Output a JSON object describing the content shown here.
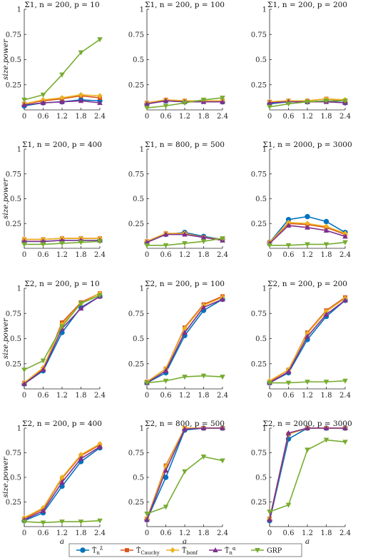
{
  "x_ticks": [
    "0",
    "0.6",
    "1.2",
    "1.8",
    "2.4"
  ],
  "y_ticks": [
    "0.25",
    "0.5",
    "0.75",
    "1"
  ],
  "ylabel": "size.power",
  "xlabel": "a",
  "legend": [
    {
      "main": "T̂",
      "sub": "n",
      "sup": "λ̂",
      "color": "#0072BD",
      "marker": "circle"
    },
    {
      "main": "T̂",
      "sub": "Cauchy",
      "sup": "",
      "color": "#D95319",
      "marker": "square"
    },
    {
      "main": "T̂",
      "sub": "bonf",
      "sup": "",
      "color": "#EDB120",
      "marker": "diamond"
    },
    {
      "main": "T̂",
      "sub": "n",
      "sup": "α",
      "color": "#7E2F8E",
      "marker": "triangle-up"
    },
    {
      "main": "GRP",
      "sub": "",
      "sup": "",
      "color": "#77AC30",
      "marker": "triangle-down"
    }
  ],
  "chart_data": [
    {
      "type": "line",
      "title": "Σ1, n = 200, p = 10",
      "x": [
        0,
        0.6,
        1.2,
        1.8,
        2.4
      ],
      "ylim": [
        0,
        1
      ],
      "series": [
        {
          "name": "T̂n^λ̂",
          "values": [
            0.04,
            0.07,
            0.08,
            0.1,
            0.09
          ]
        },
        {
          "name": "T̂Cauchy",
          "values": [
            0.06,
            0.09,
            0.11,
            0.14,
            0.12
          ]
        },
        {
          "name": "T̂bonf",
          "values": [
            0.06,
            0.1,
            0.12,
            0.15,
            0.14
          ]
        },
        {
          "name": "T̂n^α",
          "values": [
            0.05,
            0.07,
            0.08,
            0.09,
            0.07
          ]
        },
        {
          "name": "GRP",
          "values": [
            0.1,
            0.15,
            0.35,
            0.57,
            0.7
          ]
        }
      ]
    },
    {
      "type": "line",
      "title": "Σ1, n = 200, p = 100",
      "x": [
        0,
        0.6,
        1.2,
        1.8,
        2.4
      ],
      "ylim": [
        0,
        1
      ],
      "series": [
        {
          "name": "T̂n^λ̂",
          "values": [
            0.06,
            0.09,
            0.08,
            0.09,
            0.08
          ]
        },
        {
          "name": "T̂Cauchy",
          "values": [
            0.07,
            0.1,
            0.09,
            0.09,
            0.09
          ]
        },
        {
          "name": "T̂bonf",
          "values": [
            0.07,
            0.1,
            0.09,
            0.09,
            0.09
          ]
        },
        {
          "name": "T̂n^α",
          "values": [
            0.06,
            0.09,
            0.08,
            0.08,
            0.08
          ]
        },
        {
          "name": "GRP",
          "values": [
            0.02,
            0.04,
            0.07,
            0.1,
            0.12
          ]
        }
      ]
    },
    {
      "type": "line",
      "title": "Σ1, n = 200, p = 200",
      "x": [
        0,
        0.6,
        1.2,
        1.8,
        2.4
      ],
      "ylim": [
        0,
        1
      ],
      "series": [
        {
          "name": "T̂n^λ̂",
          "values": [
            0.06,
            0.08,
            0.08,
            0.09,
            0.07
          ]
        },
        {
          "name": "T̂Cauchy",
          "values": [
            0.08,
            0.09,
            0.09,
            0.11,
            0.09
          ]
        },
        {
          "name": "T̂bonf",
          "values": [
            0.08,
            0.09,
            0.09,
            0.11,
            0.1
          ]
        },
        {
          "name": "T̂n^α",
          "values": [
            0.07,
            0.08,
            0.08,
            0.08,
            0.07
          ]
        },
        {
          "name": "GRP",
          "values": [
            0.03,
            0.06,
            0.08,
            0.09,
            0.09
          ]
        }
      ]
    },
    {
      "type": "line",
      "title": "Σ1, n = 200, p = 400",
      "x": [
        0,
        0.6,
        1.2,
        1.8,
        2.4
      ],
      "ylim": [
        0,
        1
      ],
      "series": [
        {
          "name": "T̂n^λ̂",
          "values": [
            0.07,
            0.07,
            0.08,
            0.08,
            0.08
          ]
        },
        {
          "name": "T̂Cauchy",
          "values": [
            0.09,
            0.09,
            0.1,
            0.1,
            0.1
          ]
        },
        {
          "name": "T̂bonf",
          "values": [
            0.09,
            0.09,
            0.1,
            0.1,
            0.1
          ]
        },
        {
          "name": "T̂n^α",
          "values": [
            0.07,
            0.07,
            0.08,
            0.08,
            0.08
          ]
        },
        {
          "name": "GRP",
          "values": [
            0.04,
            0.04,
            0.05,
            0.06,
            0.07
          ]
        }
      ]
    },
    {
      "type": "line",
      "title": "Σ1, n = 800, p = 500",
      "x": [
        0,
        0.6,
        1.2,
        1.8,
        2.4
      ],
      "ylim": [
        0,
        1
      ],
      "series": [
        {
          "name": "T̂n^λ̂",
          "values": [
            0.06,
            0.14,
            0.16,
            0.12,
            0.09
          ]
        },
        {
          "name": "T̂Cauchy",
          "values": [
            0.07,
            0.15,
            0.15,
            0.11,
            0.09
          ]
        },
        {
          "name": "T̂bonf",
          "values": [
            0.07,
            0.15,
            0.15,
            0.11,
            0.09
          ]
        },
        {
          "name": "T̂n^α",
          "values": [
            0.06,
            0.14,
            0.14,
            0.11,
            0.08
          ]
        },
        {
          "name": "GRP",
          "values": [
            0.03,
            0.03,
            0.05,
            0.07,
            0.1
          ]
        }
      ]
    },
    {
      "type": "line",
      "title": "Σ1, n = 2000, p = 3000",
      "x": [
        0,
        0.6,
        1.2,
        1.8,
        2.4
      ],
      "ylim": [
        0,
        1
      ],
      "series": [
        {
          "name": "T̂n^λ̂",
          "values": [
            0.06,
            0.29,
            0.32,
            0.27,
            0.16
          ]
        },
        {
          "name": "T̂Cauchy",
          "values": [
            0.06,
            0.25,
            0.24,
            0.21,
            0.14
          ]
        },
        {
          "name": "T̂bonf",
          "values": [
            0.06,
            0.26,
            0.25,
            0.22,
            0.15
          ]
        },
        {
          "name": "T̂n^α",
          "values": [
            0.05,
            0.23,
            0.21,
            0.18,
            0.12
          ]
        },
        {
          "name": "GRP",
          "values": [
            0.03,
            0.03,
            0.04,
            0.04,
            0.06
          ]
        }
      ]
    },
    {
      "type": "line",
      "title": "Σ2, n = 200, p = 10",
      "x": [
        0,
        0.6,
        1.2,
        1.8,
        2.4
      ],
      "ylim": [
        0,
        1
      ],
      "series": [
        {
          "name": "T̂n^λ̂",
          "values": [
            0.05,
            0.18,
            0.56,
            0.81,
            0.92
          ]
        },
        {
          "name": "T̂Cauchy",
          "values": [
            0.06,
            0.2,
            0.66,
            0.86,
            0.95
          ]
        },
        {
          "name": "T̂bonf",
          "values": [
            0.06,
            0.21,
            0.64,
            0.85,
            0.95
          ]
        },
        {
          "name": "T̂n^α",
          "values": [
            0.05,
            0.19,
            0.6,
            0.8,
            0.92
          ]
        },
        {
          "name": "GRP",
          "values": [
            0.19,
            0.28,
            0.62,
            0.85,
            0.93
          ]
        }
      ]
    },
    {
      "type": "line",
      "title": "Σ2, n = 200, p = 100",
      "x": [
        0,
        0.6,
        1.2,
        1.8,
        2.4
      ],
      "ylim": [
        0,
        1
      ],
      "series": [
        {
          "name": "T̂n^λ̂",
          "values": [
            0.06,
            0.16,
            0.53,
            0.78,
            0.89
          ]
        },
        {
          "name": "T̂Cauchy",
          "values": [
            0.07,
            0.2,
            0.61,
            0.84,
            0.92
          ]
        },
        {
          "name": "T̂bonf",
          "values": [
            0.07,
            0.2,
            0.6,
            0.83,
            0.91
          ]
        },
        {
          "name": "T̂n^α",
          "values": [
            0.06,
            0.18,
            0.56,
            0.81,
            0.89
          ]
        },
        {
          "name": "GRP",
          "values": [
            0.06,
            0.08,
            0.12,
            0.13,
            0.12
          ]
        }
      ]
    },
    {
      "type": "line",
      "title": "Σ2, n = 200, p = 200",
      "x": [
        0,
        0.6,
        1.2,
        1.8,
        2.4
      ],
      "ylim": [
        0,
        1
      ],
      "series": [
        {
          "name": "T̂n^λ̂",
          "values": [
            0.06,
            0.16,
            0.49,
            0.72,
            0.88
          ]
        },
        {
          "name": "T̂Cauchy",
          "values": [
            0.07,
            0.19,
            0.56,
            0.78,
            0.91
          ]
        },
        {
          "name": "T̂bonf",
          "values": [
            0.08,
            0.19,
            0.55,
            0.77,
            0.9
          ]
        },
        {
          "name": "T̂n^α",
          "values": [
            0.06,
            0.17,
            0.52,
            0.74,
            0.88
          ]
        },
        {
          "name": "GRP",
          "values": [
            0.06,
            0.06,
            0.07,
            0.07,
            0.08
          ]
        }
      ]
    },
    {
      "type": "line",
      "title": "Σ2, n = 200, p = 400",
      "x": [
        0,
        0.6,
        1.2,
        1.8,
        2.4
      ],
      "ylim": [
        0,
        1
      ],
      "series": [
        {
          "name": "T̂n^λ̂",
          "values": [
            0.06,
            0.14,
            0.41,
            0.66,
            0.8
          ]
        },
        {
          "name": "T̂Cauchy",
          "values": [
            0.08,
            0.18,
            0.49,
            0.72,
            0.83
          ]
        },
        {
          "name": "T̂bonf",
          "values": [
            0.09,
            0.19,
            0.5,
            0.73,
            0.84
          ]
        },
        {
          "name": "T̂n^α",
          "values": [
            0.07,
            0.16,
            0.45,
            0.69,
            0.81
          ]
        },
        {
          "name": "GRP",
          "values": [
            0.05,
            0.04,
            0.05,
            0.05,
            0.06
          ]
        }
      ]
    },
    {
      "type": "line",
      "title": "Σ2, n = 800, p = 500",
      "x": [
        0,
        0.6,
        1.2,
        1.8,
        2.4
      ],
      "ylim": [
        0,
        1
      ],
      "series": [
        {
          "name": "T̂n^λ̂",
          "values": [
            0.07,
            0.5,
            0.98,
            1.0,
            1.0
          ]
        },
        {
          "name": "T̂Cauchy",
          "values": [
            0.08,
            0.62,
            1.0,
            1.0,
            1.0
          ]
        },
        {
          "name": "T̂bonf",
          "values": [
            0.08,
            0.61,
            1.0,
            1.0,
            1.0
          ]
        },
        {
          "name": "T̂n^α",
          "values": [
            0.07,
            0.57,
            0.99,
            1.0,
            1.0
          ]
        },
        {
          "name": "GRP",
          "values": [
            0.13,
            0.2,
            0.56,
            0.71,
            0.67
          ]
        }
      ]
    },
    {
      "type": "line",
      "title": "Σ2, n = 2000, p = 3000",
      "x": [
        0,
        0.6,
        1.2,
        1.8,
        2.4
      ],
      "ylim": [
        0,
        1
      ],
      "series": [
        {
          "name": "T̂n^λ̂",
          "values": [
            0.06,
            0.89,
            1.0,
            1.0,
            1.0
          ]
        },
        {
          "name": "T̂Cauchy",
          "values": [
            0.08,
            0.94,
            1.0,
            1.0,
            1.0
          ]
        },
        {
          "name": "T̂bonf",
          "values": [
            0.08,
            0.94,
            1.0,
            1.0,
            1.0
          ]
        },
        {
          "name": "T̂n^α",
          "values": [
            0.07,
            0.95,
            1.0,
            1.0,
            1.0
          ]
        },
        {
          "name": "GRP",
          "values": [
            0.15,
            0.22,
            0.78,
            0.88,
            0.86
          ]
        }
      ]
    }
  ]
}
